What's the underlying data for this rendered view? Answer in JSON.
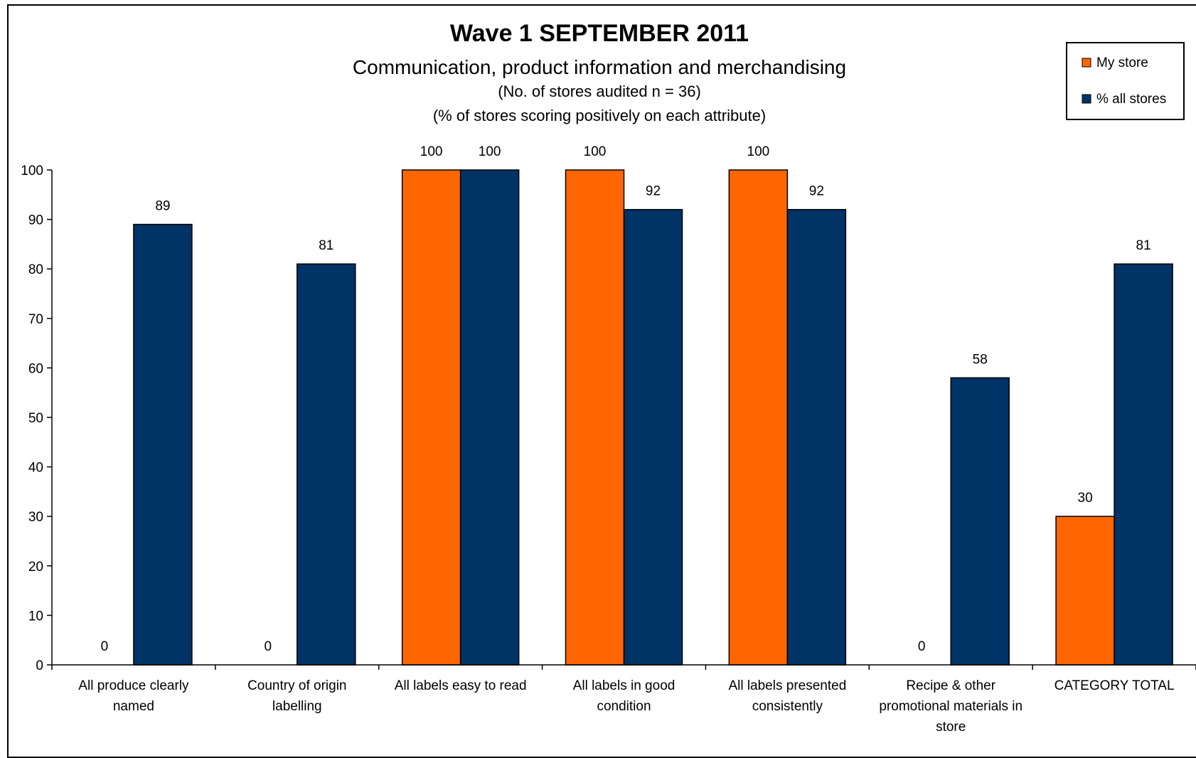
{
  "chart_data": {
    "type": "bar",
    "title": "Wave 1 SEPTEMBER 2011",
    "subtitle": "Communication, product information and merchandising",
    "notes": [
      "(No. of stores audited n = 36)",
      "(% of stores scoring positively on each attribute)"
    ],
    "categories": [
      [
        "All produce clearly",
        "named"
      ],
      [
        "Country of origin",
        "labelling"
      ],
      [
        "All labels easy to read"
      ],
      [
        "All labels in good",
        "condition"
      ],
      [
        "All labels presented",
        "consistently"
      ],
      [
        "Recipe & other",
        "promotional materials in",
        "store"
      ],
      [
        "CATEGORY TOTAL"
      ]
    ],
    "series": [
      {
        "name": "My store",
        "color": "#FF6600",
        "values": [
          0,
          0,
          100,
          100,
          100,
          0,
          30
        ]
      },
      {
        "name": "% all stores",
        "color": "#003366",
        "values": [
          89,
          81,
          100,
          92,
          92,
          58,
          81
        ]
      }
    ],
    "ylim": [
      0,
      100
    ],
    "yticks": [
      0,
      10,
      20,
      30,
      40,
      50,
      60,
      70,
      80,
      90,
      100
    ],
    "grid": false,
    "legend_position": "top-right"
  }
}
